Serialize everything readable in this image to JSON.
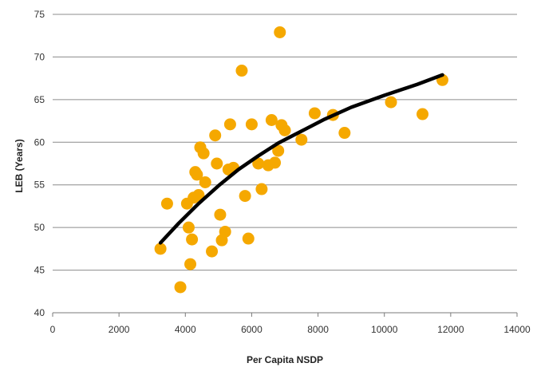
{
  "chart_data": {
    "type": "scatter",
    "title": "",
    "xlabel": "Per Capita  NSDP",
    "ylabel": "LEB (Years)",
    "xlim": [
      0,
      14000
    ],
    "ylim": [
      40,
      75
    ],
    "x_ticks": [
      0,
      2000,
      4000,
      6000,
      8000,
      10000,
      12000,
      14000
    ],
    "y_ticks": [
      40,
      45,
      50,
      55,
      60,
      65,
      70,
      75
    ],
    "grid": "horizontal",
    "legend": "none",
    "colors": {
      "points": "#f5a800",
      "trend": "#000000",
      "grid": "#8c8c8c"
    },
    "series": [
      {
        "kind": "points",
        "points": [
          [
            3250,
            47.5
          ],
          [
            3450,
            52.8
          ],
          [
            3850,
            43.0
          ],
          [
            4050,
            52.8
          ],
          [
            4100,
            50.0
          ],
          [
            4150,
            45.7
          ],
          [
            4200,
            48.6
          ],
          [
            4250,
            53.5
          ],
          [
            4300,
            56.5
          ],
          [
            4350,
            56.2
          ],
          [
            4400,
            53.8
          ],
          [
            4450,
            59.4
          ],
          [
            4550,
            58.7
          ],
          [
            4600,
            55.3
          ],
          [
            4800,
            47.2
          ],
          [
            4900,
            60.8
          ],
          [
            4950,
            57.5
          ],
          [
            5050,
            51.5
          ],
          [
            5100,
            48.5
          ],
          [
            5200,
            49.5
          ],
          [
            5300,
            56.8
          ],
          [
            5350,
            62.1
          ],
          [
            5450,
            57.0
          ],
          [
            5700,
            68.4
          ],
          [
            5800,
            53.7
          ],
          [
            5900,
            48.7
          ],
          [
            6000,
            62.1
          ],
          [
            6200,
            57.5
          ],
          [
            6300,
            54.5
          ],
          [
            6500,
            57.3
          ],
          [
            6600,
            62.6
          ],
          [
            6700,
            57.6
          ],
          [
            6800,
            59.0
          ],
          [
            6850,
            72.9
          ],
          [
            6900,
            62.0
          ],
          [
            7000,
            61.4
          ],
          [
            7500,
            60.3
          ],
          [
            7900,
            63.4
          ],
          [
            8450,
            63.2
          ],
          [
            8800,
            61.1
          ],
          [
            10200,
            64.7
          ],
          [
            11150,
            63.3
          ],
          [
            11750,
            67.3
          ]
        ]
      },
      {
        "kind": "trend",
        "points": [
          [
            3250,
            48.2
          ],
          [
            3800,
            50.5
          ],
          [
            4400,
            52.8
          ],
          [
            5000,
            54.9
          ],
          [
            5600,
            56.8
          ],
          [
            6200,
            58.4
          ],
          [
            6800,
            59.9
          ],
          [
            7500,
            61.3
          ],
          [
            8200,
            62.7
          ],
          [
            9000,
            64.1
          ],
          [
            10000,
            65.5
          ],
          [
            11000,
            66.8
          ],
          [
            11750,
            67.9
          ]
        ]
      }
    ]
  }
}
